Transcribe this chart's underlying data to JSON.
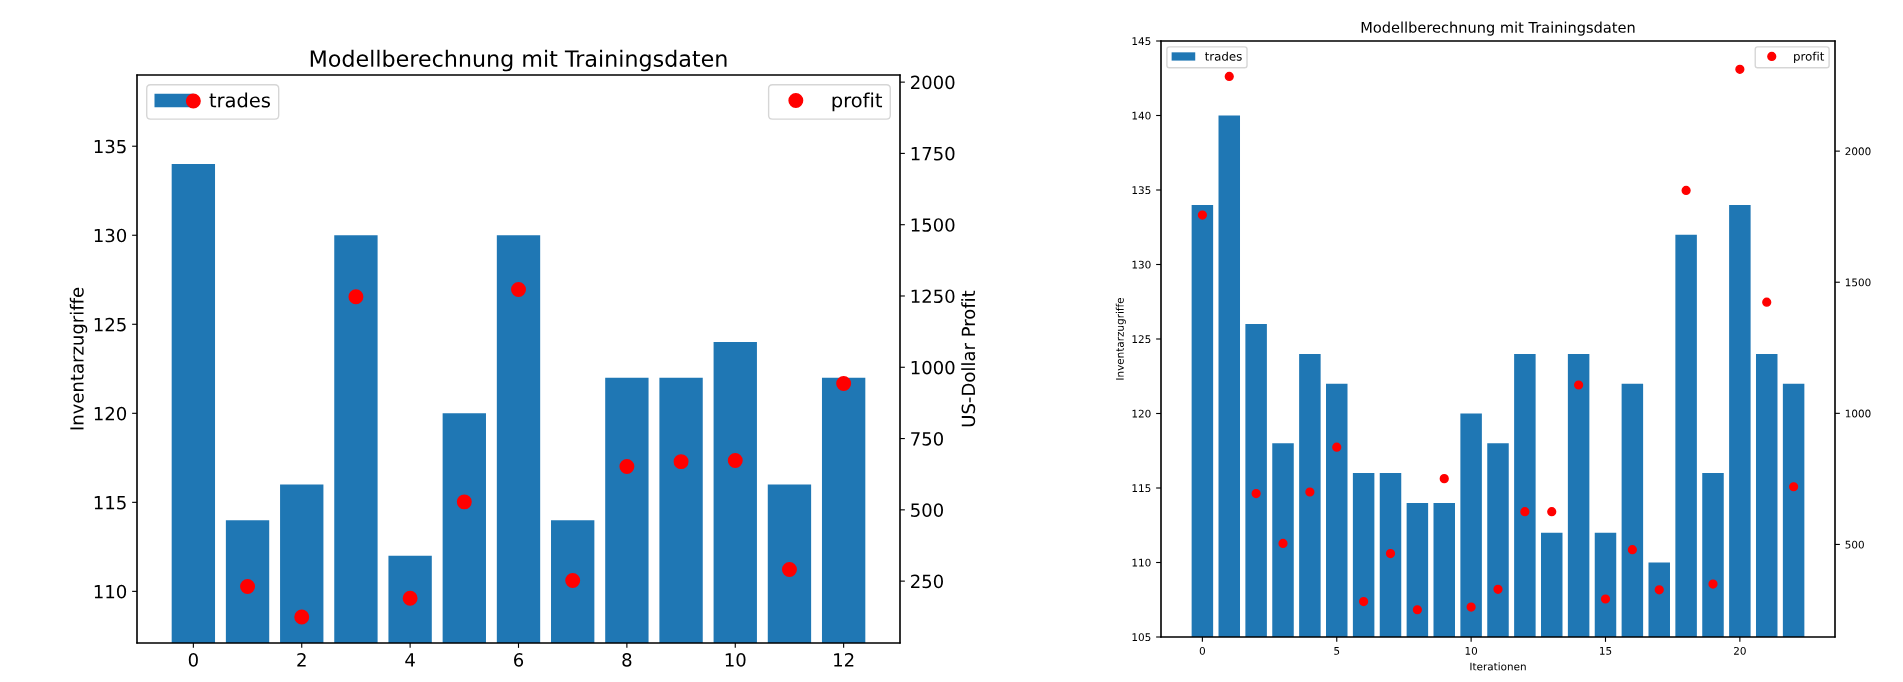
{
  "chart_data": [
    {
      "type": "bar",
      "title": "Modellberechnung mit Trainingsdaten",
      "ylabel": "Inventarzugriffe",
      "y2label": "US-Dollar Profit",
      "x": [
        0,
        1,
        2,
        3,
        4,
        5,
        6,
        7,
        8,
        9,
        10,
        11,
        12
      ],
      "series": [
        {
          "name": "trades",
          "color": "#1f77b4",
          "values": [
            134,
            114,
            116,
            130,
            112,
            120,
            130,
            114,
            122,
            122,
            124,
            116,
            122
          ]
        },
        {
          "name": "profit",
          "type": "scatter",
          "axis": "y2",
          "color": "#ff0000",
          "marker": "circle",
          "values": [
            1934,
            231,
            124,
            1247,
            190,
            528,
            1273,
            252,
            652,
            669,
            673,
            291,
            943
          ]
        }
      ],
      "xlim": [
        -1.04,
        13.04
      ],
      "xticks": [
        0,
        2,
        4,
        6,
        8,
        10,
        12
      ],
      "ylim": [
        107.1,
        139
      ],
      "yticks": [
        110,
        115,
        120,
        125,
        130,
        135
      ],
      "y2lim": [
        33,
        2025
      ],
      "y2ticks": [
        250,
        500,
        750,
        1000,
        1250,
        1500,
        1750,
        2000
      ],
      "legend": "top",
      "grid": false
    },
    {
      "type": "bar",
      "title": "Modellberechnung mit Trainingsdaten",
      "xlabel": "Iterationen",
      "ylabel": "Inventarzugriffe",
      "x": [
        0,
        1,
        2,
        3,
        4,
        5,
        6,
        7,
        8,
        9,
        10,
        11,
        12,
        13,
        14,
        15,
        16,
        17,
        18,
        19,
        20,
        21,
        22
      ],
      "series": [
        {
          "name": "trades",
          "color": "#1f77b4",
          "values": [
            134,
            140,
            126,
            118,
            124,
            122,
            116,
            116,
            114,
            114,
            120,
            118,
            124,
            112,
            124,
            112,
            122,
            110,
            132,
            116,
            134,
            124,
            122
          ]
        },
        {
          "name": "profit",
          "type": "scatter",
          "axis": "y2",
          "color": "#ff0000",
          "marker": "circle",
          "values": [
            1756,
            2285,
            694,
            504,
            700,
            871,
            282,
            465,
            251,
            751,
            261,
            329,
            625,
            625,
            1108,
            292,
            480,
            327,
            1850,
            349,
            2312,
            1424,
            720
          ]
        }
      ],
      "xlim": [
        -1.54,
        23.54
      ],
      "xticks": [
        0,
        5,
        10,
        15,
        20
      ],
      "ylim": [
        105,
        145
      ],
      "yticks": [
        105,
        110,
        115,
        120,
        125,
        130,
        135,
        140,
        145
      ],
      "y2lim": [
        147,
        2420
      ],
      "y2ticks": [
        500,
        1000,
        1500,
        2000
      ],
      "legend": "top",
      "grid": false
    }
  ]
}
